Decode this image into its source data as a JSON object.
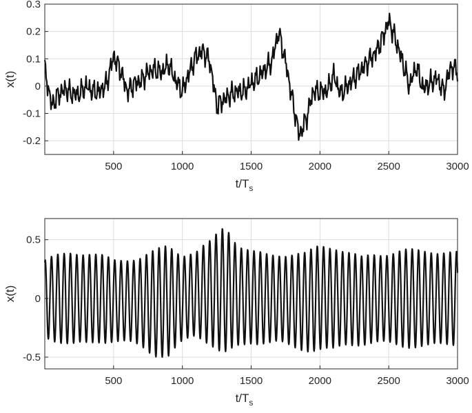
{
  "chart_data": [
    {
      "type": "line",
      "xlabel": "t/T",
      "xlabel_subscript": "s",
      "ylabel": "x(t)",
      "xlim": [
        0,
        3000
      ],
      "ylim": [
        -0.25,
        0.3
      ],
      "xticks": [
        500,
        1000,
        1500,
        2000,
        2500,
        3000
      ],
      "xtick_labels": [
        "500",
        "1000",
        "1500",
        "2000",
        "2500",
        "3000"
      ],
      "yticks": [
        -0.2,
        -0.1,
        0,
        0.1,
        0.2,
        0.3
      ],
      "ytick_labels": [
        "-0.2",
        "-0.1",
        "0",
        "0.1",
        "0.2",
        "0.3"
      ],
      "grid": true,
      "line_color": "#111111",
      "series": [
        {
          "x": [
            0,
            50,
            100,
            150,
            200,
            250,
            300,
            350,
            400,
            450,
            500,
            550,
            600,
            650,
            700,
            750,
            800,
            850,
            900,
            950,
            1000,
            1050,
            1100,
            1150,
            1200,
            1250,
            1300,
            1350,
            1400,
            1450,
            1500,
            1550,
            1600,
            1650,
            1700,
            1750,
            1800,
            1850,
            1900,
            1950,
            2000,
            2050,
            2100,
            2150,
            2200,
            2250,
            2300,
            2350,
            2400,
            2450,
            2500,
            2550,
            2600,
            2650,
            2700,
            2750,
            2800,
            2850,
            2900,
            2950,
            3000
          ],
          "values": [
            0.06,
            -0.07,
            -0.03,
            -0.01,
            -0.03,
            -0.03,
            0,
            -0.02,
            -0.02,
            0.01,
            0.11,
            0.06,
            -0.02,
            0.01,
            0.02,
            0.05,
            0.06,
            0.05,
            0.08,
            0.02,
            -0.02,
            0.05,
            0.11,
            0.13,
            0.09,
            -0.07,
            -0.05,
            -0.03,
            -0.02,
            -0.02,
            0.01,
            0.03,
            0.06,
            0.09,
            0.2,
            0.09,
            -0.05,
            -0.18,
            -0.12,
            -0.02,
            -0.02,
            -0.02,
            0.04,
            -0.03,
            0,
            0.03,
            0.06,
            0.09,
            0.12,
            0.17,
            0.24,
            0.17,
            0.09,
            0,
            0.07,
            -0.01,
            0.01,
            0.03,
            -0.02,
            0.07,
            0.06
          ]
        }
      ]
    },
    {
      "type": "line",
      "xlabel": "t/T",
      "xlabel_subscript": "s",
      "ylabel": "x(t)",
      "xlim": [
        0,
        3000
      ],
      "ylim": [
        -0.6,
        0.68
      ],
      "xticks": [
        500,
        1000,
        1500,
        2000,
        2500,
        3000
      ],
      "xtick_labels": [
        "500",
        "1000",
        "1500",
        "2000",
        "2500",
        "3000"
      ],
      "yticks": [
        -0.5,
        0,
        0.5
      ],
      "ytick_labels": [
        "-0.5",
        "0",
        "0.5"
      ],
      "grid": true,
      "line_color": "#111111",
      "oscillation_period": 46,
      "series": [
        {
          "x": [
            0,
            100,
            200,
            300,
            400,
            500,
            600,
            700,
            800,
            900,
            1000,
            1100,
            1200,
            1300,
            1350,
            1400,
            1500,
            1600,
            1700,
            1800,
            1900,
            2000,
            2100,
            2200,
            2300,
            2400,
            2500,
            2600,
            2700,
            2800,
            2900,
            3000
          ],
          "envelope": [
            0.32,
            0.36,
            0.4,
            0.39,
            0.36,
            0.34,
            0.36,
            0.38,
            0.43,
            0.47,
            0.38,
            0.35,
            0.42,
            0.55,
            0.52,
            0.44,
            0.38,
            0.37,
            0.38,
            0.4,
            0.4,
            0.44,
            0.45,
            0.39,
            0.36,
            0.38,
            0.39,
            0.4,
            0.4,
            0.41,
            0.4,
            0.38
          ],
          "offset": [
            0,
            0,
            0,
            0,
            0,
            -0.02,
            -0.02,
            -0.03,
            -0.04,
            -0.02,
            0,
            0.04,
            0.05,
            0.07,
            0.06,
            0.02,
            0.01,
            0,
            0,
            -0.02,
            -0.03,
            0.01,
            0,
            0,
            -0.02,
            0,
            0,
            0,
            0,
            0,
            0,
            0
          ]
        }
      ]
    }
  ]
}
